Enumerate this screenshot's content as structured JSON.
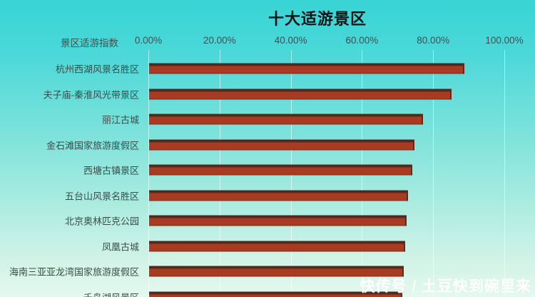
{
  "title": "十大适游景区",
  "watermark": "快传号 / 土豆快到碗里来",
  "colors": {
    "bar": "#a83b22",
    "bar_edge_dark": "#4e281d",
    "bar_edge_bottom": "#86301b",
    "background_top": "#38d4d6",
    "background_bottom": "#e4f8ef",
    "gridline": "rgba(255,255,255,0.55)",
    "text": "#3c524e",
    "title_text": "#141414",
    "watermark_text": "#ffffff"
  },
  "chart_data": {
    "type": "bar",
    "orientation": "horizontal",
    "title": "十大适游景区",
    "axis_label": "景区适游指数",
    "x_ticks": [
      "0.00%",
      "20.00%",
      "40.00%",
      "60.00%",
      "80.00%",
      "100.00%"
    ],
    "xlim": [
      0,
      100
    ],
    "grid": true,
    "categories": [
      "杭州西湖风景名胜区",
      "夫子庙-秦淮风光带景区",
      "丽江古城",
      "金石滩国家旅游度假区",
      "西塘古镇景区",
      "五台山风景名胜区",
      "北京奥林匹克公园",
      "凤凰古城",
      "海南三亚亚龙湾国家旅游度假区",
      "千岛湖风景区"
    ],
    "values": [
      88.6,
      85.0,
      77.0,
      74.5,
      74.0,
      72.7,
      72.3,
      71.9,
      71.5,
      71.1
    ]
  }
}
